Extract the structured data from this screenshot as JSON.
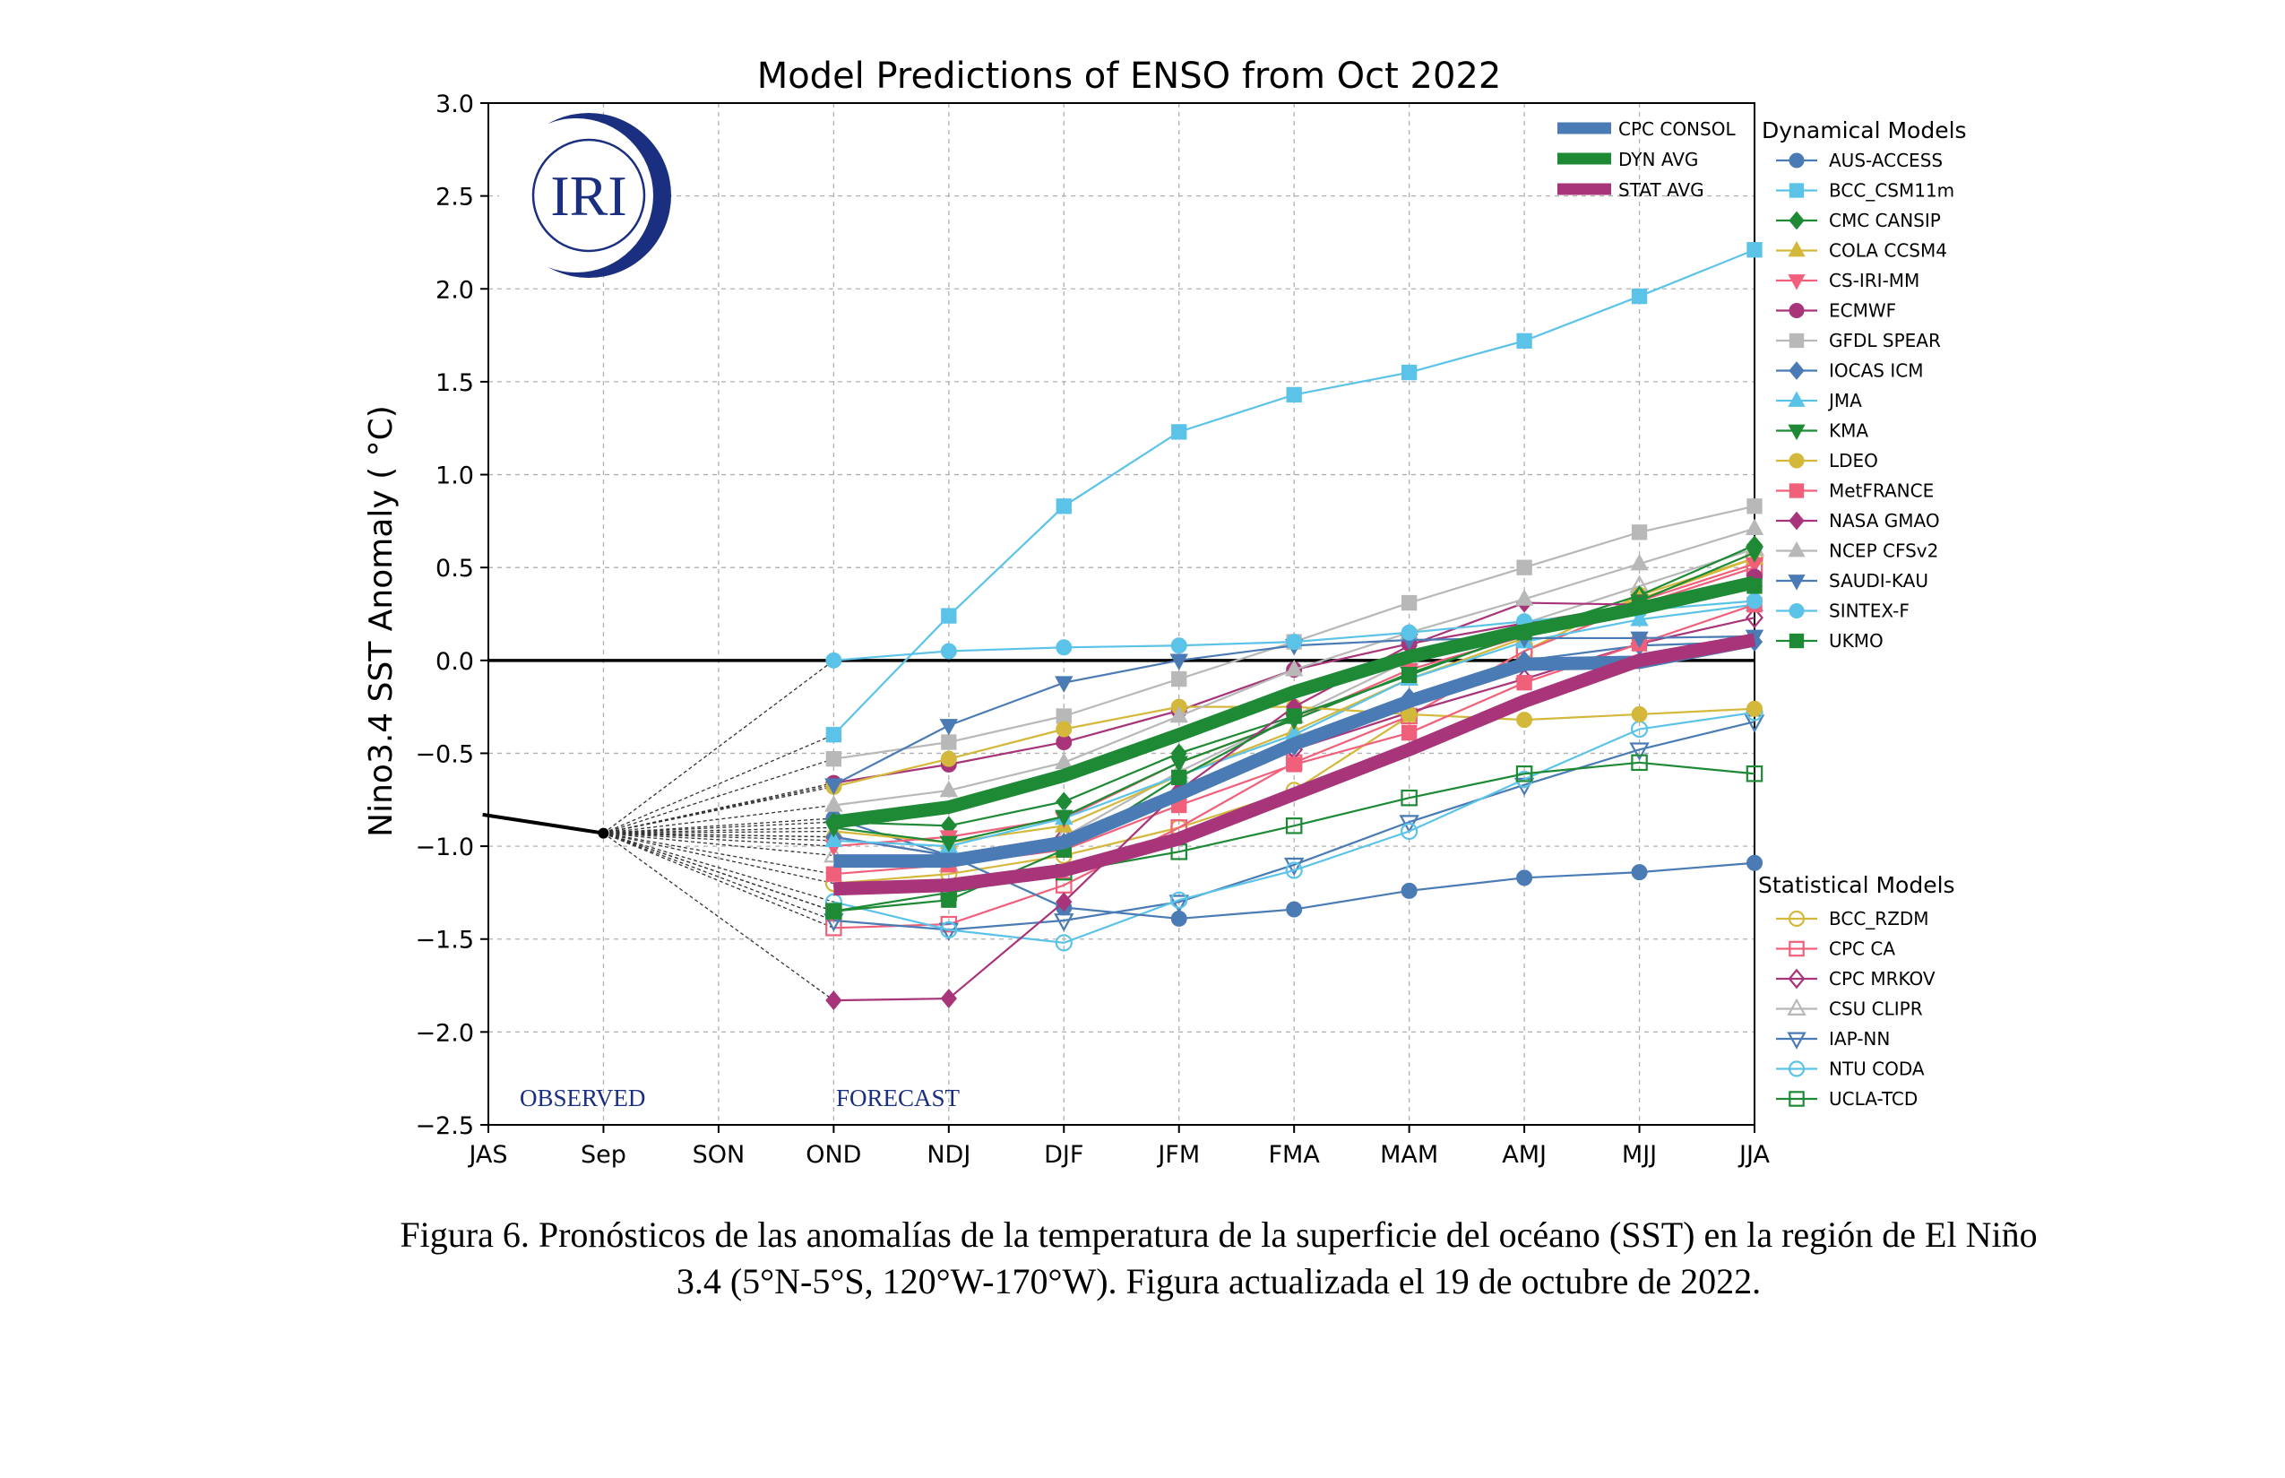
{
  "chart_data": {
    "type": "line",
    "title": "Model Predictions of ENSO from Oct 2022",
    "ylabel": "Nino3.4 SST Anomaly ( °C)",
    "xlabel": "",
    "categories": [
      "JAS",
      "Sep",
      "SON",
      "OND",
      "NDJ",
      "DJF",
      "JFM",
      "FMA",
      "MAM",
      "AMJ",
      "MJJ",
      "JJA"
    ],
    "ylim": [
      -2.5,
      3.0
    ],
    "yticks": [
      "3.0",
      "2.5",
      "2.0",
      "1.5",
      "1.0",
      "0.5",
      "0.0",
      "−0.5",
      "−1.0",
      "−1.5",
      "−2.0",
      "−2.5"
    ],
    "grid": true,
    "observed_label": "OBSERVED",
    "forecast_label": "FORECAST",
    "logo_text": "IRI",
    "observed": {
      "x": [
        -0.05,
        1
      ],
      "values": [
        -0.83,
        -0.93
      ]
    },
    "consensus": [
      {
        "name": "CPC CONSOL",
        "color": "#4a7bb5",
        "values": [
          -1.08,
          -1.08,
          -0.98,
          -0.72,
          -0.45,
          -0.22,
          -0.02,
          -0.01,
          0.11
        ]
      },
      {
        "name": "DYN AVG",
        "color": "#1f8a35",
        "values": [
          -0.87,
          -0.79,
          -0.62,
          -0.4,
          -0.17,
          0.02,
          0.16,
          0.28,
          0.42
        ]
      },
      {
        "name": "STAT AVG",
        "color": "#a8357a",
        "values": [
          -1.23,
          -1.21,
          -1.13,
          -0.96,
          -0.72,
          -0.48,
          -0.22,
          0.0,
          0.11
        ]
      }
    ],
    "legend_dynamical_title": "Dynamical Models",
    "dynamical": [
      {
        "name": "AUS-ACCESS",
        "color": "#4a7bb5",
        "marker": "circle",
        "values": [
          -0.85,
          -1.05,
          -1.33,
          -1.39,
          -1.34,
          -1.24,
          -1.17,
          -1.14,
          -1.09
        ]
      },
      {
        "name": "BCC_CSM11m",
        "color": "#5cc3e8",
        "marker": "square",
        "values": [
          -0.4,
          0.24,
          0.83,
          1.23,
          1.43,
          1.55,
          1.72,
          1.96,
          2.21
        ]
      },
      {
        "name": "CMC CANSIP",
        "color": "#1e8a35",
        "marker": "diamond",
        "values": [
          -0.87,
          -0.89,
          -0.76,
          -0.5,
          -0.3,
          -0.08,
          0.15,
          0.35,
          0.62
        ]
      },
      {
        "name": "COLA CCSM4",
        "color": "#d4b83c",
        "marker": "triangle-up",
        "values": [
          -0.92,
          -0.98,
          -0.89,
          -0.62,
          -0.38,
          -0.1,
          0.12,
          0.33,
          0.55
        ]
      },
      {
        "name": "CS-IRI-MM",
        "color": "#f0607a",
        "marker": "triangle-down",
        "values": [
          -1.0,
          -0.95,
          -0.85,
          -0.55,
          -0.32,
          -0.05,
          0.13,
          0.32,
          0.52
        ]
      },
      {
        "name": "ECMWF",
        "color": "#a8357a",
        "marker": "circle",
        "values": [
          -0.66,
          -0.56,
          -0.44,
          -0.27,
          -0.05,
          0.09,
          0.2,
          0.3,
          0.45
        ]
      },
      {
        "name": "GFDL SPEAR",
        "color": "#b8b8b8",
        "marker": "square",
        "values": [
          -0.53,
          -0.44,
          -0.3,
          -0.1,
          0.1,
          0.31,
          0.5,
          0.69,
          0.83
        ]
      },
      {
        "name": "IOCAS ICM",
        "color": "#4a7bb5",
        "marker": "diamond",
        "values": [
          -0.95,
          -1.05,
          -0.98,
          -0.75,
          -0.46,
          -0.2,
          0.0,
          0.08,
          0.1
        ]
      },
      {
        "name": "JMA",
        "color": "#5cc3e8",
        "marker": "triangle-up",
        "values": [
          -0.97,
          -1.0,
          -0.85,
          -0.62,
          -0.4,
          -0.1,
          0.1,
          0.22,
          0.3
        ]
      },
      {
        "name": "KMA",
        "color": "#1e8a35",
        "marker": "triangle-down",
        "values": [
          -0.9,
          -0.98,
          -0.84,
          -0.55,
          -0.32,
          -0.07,
          0.14,
          0.32,
          0.58
        ]
      },
      {
        "name": "LDEO",
        "color": "#d4b83c",
        "marker": "circle",
        "values": [
          -0.68,
          -0.53,
          -0.37,
          -0.25,
          -0.25,
          -0.29,
          -0.32,
          -0.29,
          -0.26
        ]
      },
      {
        "name": "MetFRANCE",
        "color": "#f0607a",
        "marker": "square",
        "values": [
          -1.15,
          -1.1,
          -1.02,
          -0.78,
          -0.56,
          -0.39,
          -0.12,
          0.09,
          0.3
        ]
      },
      {
        "name": "NASA GMAO",
        "color": "#a8357a",
        "marker": "diamond",
        "values": [
          -1.83,
          -1.82,
          -1.3,
          -0.7,
          -0.25,
          0.08,
          0.31,
          0.3,
          0.4
        ]
      },
      {
        "name": "NCEP CFSv2",
        "color": "#b8b8b8",
        "marker": "triangle-up",
        "values": [
          -0.78,
          -0.7,
          -0.55,
          -0.3,
          -0.05,
          0.15,
          0.33,
          0.52,
          0.71
        ]
      },
      {
        "name": "SAUDI-KAU",
        "color": "#4a7bb5",
        "marker": "triangle-down",
        "values": [
          -0.67,
          -0.35,
          -0.12,
          0.0,
          0.08,
          0.11,
          0.12,
          0.12,
          0.13
        ]
      },
      {
        "name": "SINTEX-F",
        "color": "#5cc3e8",
        "marker": "circle",
        "values": [
          0.0,
          0.05,
          0.07,
          0.08,
          0.1,
          0.15,
          0.21,
          0.27,
          0.32
        ]
      },
      {
        "name": "UKMO",
        "color": "#1e8a35",
        "marker": "square",
        "values": [
          -1.35,
          -1.29,
          -1.02,
          -0.63,
          -0.3,
          -0.08,
          0.15,
          0.3,
          0.4
        ]
      }
    ],
    "legend_statistical_title": "Statistical Models",
    "statistical": [
      {
        "name": "BCC_RZDM",
        "color": "#d4b83c",
        "marker": "circle-open",
        "values": [
          -1.2,
          -1.15,
          -1.05,
          -0.9,
          -0.7,
          -0.3,
          0.05,
          0.35,
          0.55
        ]
      },
      {
        "name": "CPC CA",
        "color": "#f0607a",
        "marker": "square-open",
        "values": [
          -1.44,
          -1.42,
          -1.21,
          -0.9,
          -0.55,
          -0.3,
          0.05,
          0.3,
          0.5
        ]
      },
      {
        "name": "CPC MRKOV",
        "color": "#a8357a",
        "marker": "diamond-open",
        "values": [
          -0.95,
          -1.05,
          -0.95,
          -0.72,
          -0.48,
          -0.28,
          -0.1,
          0.09,
          0.23
        ]
      },
      {
        "name": "CSU CLIPR",
        "color": "#b8b8b8",
        "marker": "triangle-up-open",
        "values": [
          -1.05,
          -1.1,
          -0.95,
          -0.6,
          -0.3,
          0.0,
          0.2,
          0.4,
          0.6
        ]
      },
      {
        "name": "IAP-NN",
        "color": "#4a7bb5",
        "marker": "triangle-down-open",
        "values": [
          -1.4,
          -1.45,
          -1.4,
          -1.3,
          -1.1,
          -0.87,
          -0.67,
          -0.48,
          -0.33
        ]
      },
      {
        "name": "NTU CODA",
        "color": "#5cc3e8",
        "marker": "circle-open",
        "values": [
          -1.3,
          -1.45,
          -1.52,
          -1.29,
          -1.13,
          -0.92,
          -0.64,
          -0.37,
          -0.28
        ]
      },
      {
        "name": "UCLA-TCD",
        "color": "#1e8a35",
        "marker": "square-open",
        "values": [
          -1.35,
          -1.25,
          -1.14,
          -1.03,
          -0.89,
          -0.74,
          -0.61,
          -0.55,
          -0.61
        ]
      }
    ]
  },
  "caption": {
    "line1": "Figura 6. Pronósticos de las anomalías de la temperatura de la superficie del océano (SST) en la región de El Niño",
    "line2": "3.4 (5°N-5°S, 120°W-170°W). Figura actualizada el 19 de octubre de 2022."
  }
}
